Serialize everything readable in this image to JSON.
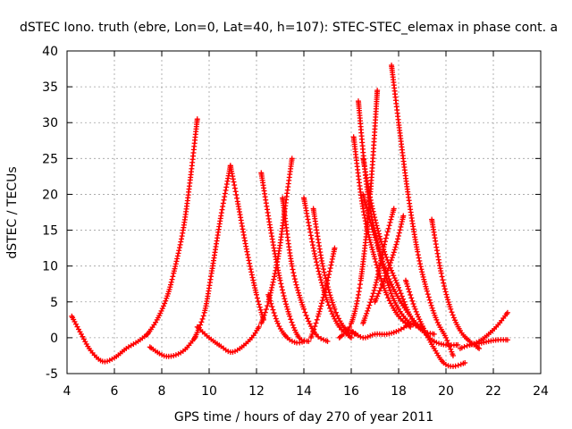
{
  "chart_data": {
    "type": "scatter",
    "title": "dSTEC Iono. truth (ebre, Lon=0, Lat=40, h=107): STEC-STEC_elemax in phase cont. a",
    "xlabel": "GPS time / hours of day 270 of year 2011",
    "ylabel": "dSTEC  / TECUs",
    "xlim": [
      4,
      24
    ],
    "ylim": [
      -5,
      40
    ],
    "xticks": [
      "4",
      "6",
      "8",
      "10",
      "12",
      "14",
      "16",
      "18",
      "20",
      "22",
      "24"
    ],
    "yticks": [
      "-5",
      "0",
      "5",
      "10",
      "15",
      "20",
      "25",
      "30",
      "35",
      "40"
    ],
    "grid": true,
    "marker": "+",
    "color": "#ff0000",
    "series": [
      {
        "x": [
          4.2,
          4.6,
          5.0,
          5.5,
          6.0,
          6.5,
          7.0,
          7.4
        ],
        "y": [
          3.0,
          0.5,
          -1.8,
          -3.3,
          -2.8,
          -1.5,
          -0.5,
          0.5
        ]
      },
      {
        "x": [
          7.4,
          7.8,
          8.2,
          8.5,
          8.9,
          9.2,
          9.5
        ],
        "y": [
          0.5,
          2.5,
          5.5,
          9.0,
          15.0,
          22.0,
          30.5
        ]
      },
      {
        "x": [
          7.5,
          7.9,
          8.2,
          8.6,
          9.0,
          9.4
        ],
        "y": [
          -1.3,
          -2.2,
          -2.6,
          -2.4,
          -1.6,
          0.0
        ]
      },
      {
        "x": [
          9.4,
          9.8,
          10.1,
          10.5,
          10.9
        ],
        "y": [
          0.0,
          3.5,
          9.0,
          17.0,
          24.0
        ]
      },
      {
        "x": [
          9.5,
          10.0,
          10.5,
          10.9,
          11.3,
          11.8,
          12.1
        ],
        "y": [
          1.5,
          0.0,
          -1.2,
          -2.0,
          -1.5,
          0.0,
          1.5
        ]
      },
      {
        "x": [
          10.9,
          11.2,
          11.6,
          12.0,
          12.3
        ],
        "y": [
          24.0,
          19.0,
          12.0,
          6.0,
          2.5
        ]
      },
      {
        "x": [
          12.2,
          12.5,
          12.9,
          13.2,
          13.5
        ],
        "y": [
          2.0,
          5.0,
          11.0,
          18.0,
          25.0
        ]
      },
      {
        "x": [
          12.2,
          12.6,
          13.0,
          13.4,
          13.8,
          14.2
        ],
        "y": [
          23.0,
          15.0,
          8.0,
          3.0,
          0.0,
          -0.5
        ]
      },
      {
        "x": [
          12.5,
          12.9,
          13.3,
          13.7,
          14.0
        ],
        "y": [
          6.0,
          2.0,
          0.0,
          -0.7,
          -0.5
        ]
      },
      {
        "x": [
          13.1,
          13.5,
          14.0,
          14.5,
          15.0
        ],
        "y": [
          19.5,
          10.0,
          4.0,
          0.5,
          -0.5
        ]
      },
      {
        "x": [
          14.0,
          14.5,
          15.0,
          15.5,
          16.0
        ],
        "y": [
          19.5,
          11.0,
          5.0,
          1.5,
          0.0
        ]
      },
      {
        "x": [
          14.4,
          14.8,
          15.3,
          15.8,
          16.2
        ],
        "y": [
          18.0,
          10.0,
          4.0,
          1.0,
          0.5
        ]
      },
      {
        "x": [
          14.3,
          14.6,
          15.0,
          15.3
        ],
        "y": [
          0.0,
          3.0,
          8.0,
          12.5
        ]
      },
      {
        "x": [
          15.5,
          16.0,
          16.4,
          16.8,
          17.1
        ],
        "y": [
          0.0,
          2.0,
          8.0,
          20.0,
          34.5
        ]
      },
      {
        "x": [
          16.1,
          16.5,
          17.0,
          17.5,
          18.0,
          18.5
        ],
        "y": [
          28.0,
          18.0,
          11.0,
          6.0,
          3.0,
          1.5
        ]
      },
      {
        "x": [
          16.3,
          16.7,
          17.2,
          17.6,
          18.0,
          18.5,
          19.0
        ],
        "y": [
          33.0,
          20.0,
          12.0,
          7.0,
          4.0,
          2.0,
          1.5
        ]
      },
      {
        "x": [
          16.5,
          16.9,
          17.4,
          18.0,
          18.5,
          19.0,
          19.5
        ],
        "y": [
          25.0,
          18.0,
          12.0,
          7.0,
          3.0,
          1.0,
          0.5
        ]
      },
      {
        "x": [
          16.5,
          17.0,
          17.5,
          18.0,
          18.5,
          19.0,
          19.5,
          20.0,
          20.5
        ],
        "y": [
          20.0,
          14.0,
          9.0,
          5.5,
          3.0,
          1.0,
          -0.5,
          -1.0,
          -1.0
        ]
      },
      {
        "x": [
          16.0,
          16.5,
          17.0,
          17.5,
          18.0,
          18.5
        ],
        "y": [
          1.0,
          0.0,
          0.5,
          0.5,
          1.0,
          2.0
        ]
      },
      {
        "x": [
          16.5,
          17.0,
          17.4,
          17.8
        ],
        "y": [
          2.0,
          7.0,
          13.0,
          18.0
        ]
      },
      {
        "x": [
          17.0,
          17.5,
          17.9,
          18.2
        ],
        "y": [
          5.0,
          9.0,
          13.0,
          17.0
        ]
      },
      {
        "x": [
          17.7,
          18.0,
          18.4,
          18.8,
          19.2,
          19.6,
          20.0,
          20.3
        ],
        "y": [
          38.0,
          30.0,
          20.0,
          12.0,
          6.5,
          2.5,
          0.0,
          -2.5
        ]
      },
      {
        "x": [
          19.4,
          19.8,
          20.2,
          20.6,
          21.0,
          21.4
        ],
        "y": [
          16.5,
          9.0,
          4.0,
          1.0,
          -0.5,
          -1.5
        ]
      },
      {
        "x": [
          18.3,
          18.7,
          19.1,
          19.5,
          19.9,
          20.3,
          20.8
        ],
        "y": [
          8.0,
          4.0,
          1.0,
          -1.5,
          -3.5,
          -4.0,
          -3.5
        ]
      },
      {
        "x": [
          20.6,
          21.0,
          21.4,
          21.8,
          22.2,
          22.6
        ],
        "y": [
          -1.5,
          -1.0,
          -0.8,
          -0.5,
          -0.3,
          -0.3
        ]
      },
      {
        "x": [
          21.0,
          21.4,
          21.8,
          22.2,
          22.6
        ],
        "y": [
          -1.0,
          -0.5,
          0.5,
          1.8,
          3.5
        ]
      }
    ]
  }
}
